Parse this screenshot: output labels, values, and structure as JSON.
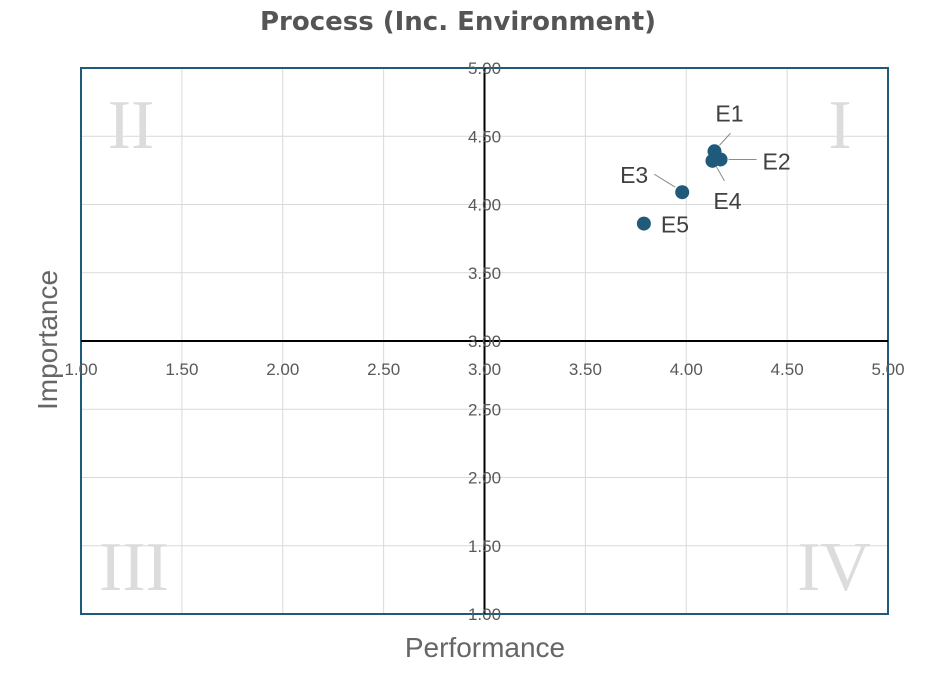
{
  "chart_data": {
    "type": "scatter",
    "title": "Process (Inc. Environment)",
    "xlabel": "Performance",
    "ylabel": "Importance",
    "xlim": [
      1.0,
      5.0
    ],
    "ylim": [
      1.0,
      5.0
    ],
    "x_ticks": [
      "1.00",
      "1.50",
      "2.00",
      "2.50",
      "3.00",
      "3.50",
      "4.00",
      "4.50",
      "5.00"
    ],
    "y_ticks": [
      "1.00",
      "1.50",
      "2.00",
      "2.50",
      "3.00",
      "3.50",
      "4.00",
      "4.50",
      "5.00"
    ],
    "x_tick_values": [
      1.0,
      1.5,
      2.0,
      2.5,
      3.0,
      3.5,
      4.0,
      4.5,
      5.0
    ],
    "y_tick_values": [
      1.0,
      1.5,
      2.0,
      2.5,
      3.0,
      3.5,
      4.0,
      4.5,
      5.0
    ],
    "crosshair": {
      "x": 3.0,
      "y": 3.0
    },
    "grid": true,
    "quadrant_labels": {
      "top_right": "I",
      "top_left": "II",
      "bottom_left": "III",
      "bottom_right": "IV"
    },
    "points": [
      {
        "label": "E1",
        "x": 4.14,
        "y": 4.39
      },
      {
        "label": "E2",
        "x": 4.17,
        "y": 4.33
      },
      {
        "label": "E3",
        "x": 3.98,
        "y": 4.09
      },
      {
        "label": "E4",
        "x": 4.13,
        "y": 4.32
      },
      {
        "label": "E5",
        "x": 3.79,
        "y": 3.86
      }
    ],
    "marker_color": "#1f5a7a",
    "frame_color": "#1f5a7a",
    "grid_color": "#d9d9d9",
    "axis_color": "#000000"
  }
}
